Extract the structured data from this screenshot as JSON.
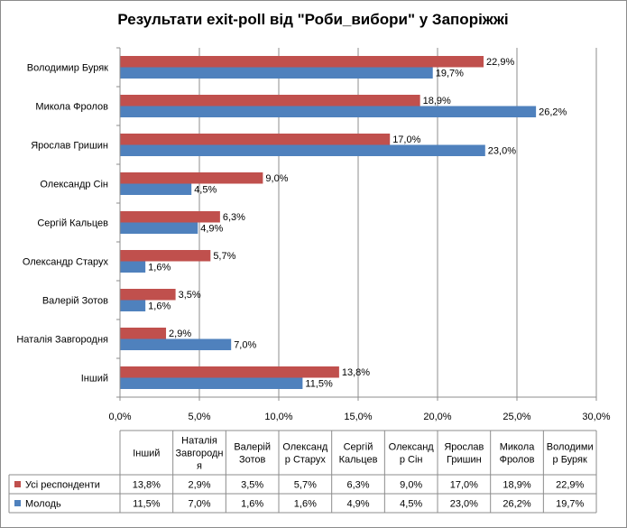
{
  "chart_data": {
    "type": "bar",
    "orientation": "horizontal",
    "title": "Результати exit-poll від \"Роби_вибори\" у Запоріжжі",
    "categories": [
      "Володимир Буряк",
      "Микола Фролов",
      "Ярослав Гришин",
      "Олександр Сін",
      "Сергій Кальцев",
      "Олександр Старух",
      "Валерій Зотов",
      "Наталія Завгородня",
      "Інший"
    ],
    "series": [
      {
        "name": "Усі респонденти",
        "color": "#c0504d",
        "values": [
          22.9,
          18.9,
          17.0,
          9.0,
          6.3,
          5.7,
          3.5,
          2.9,
          13.8
        ],
        "labels": [
          "22,9%",
          "18,9%",
          "17,0%",
          "9,0%",
          "6,3%",
          "5,7%",
          "3,5%",
          "2,9%",
          "13,8%"
        ]
      },
      {
        "name": "Молодь",
        "color": "#4f81bd",
        "values": [
          19.7,
          26.2,
          23.0,
          4.5,
          4.9,
          1.6,
          1.6,
          7.0,
          11.5
        ],
        "labels": [
          "19,7%",
          "26,2%",
          "23,0%",
          "4,5%",
          "4,9%",
          "1,6%",
          "1,6%",
          "7,0%",
          "11,5%"
        ]
      }
    ],
    "xlim": [
      0,
      30
    ],
    "x_ticks": [
      0,
      5,
      10,
      15,
      20,
      25,
      30
    ],
    "x_tick_labels": [
      "0,0%",
      "5,0%",
      "10,0%",
      "15,0%",
      "20,0%",
      "25,0%",
      "30,0%"
    ],
    "grid": true,
    "data_table": {
      "headers": [
        [
          "Інший"
        ],
        [
          "Наталія",
          "Завгородн",
          "я"
        ],
        [
          "Валерій",
          "Зотов"
        ],
        [
          "Олександ",
          "р Старух"
        ],
        [
          "Сергій",
          "Кальцев"
        ],
        [
          "Олександ",
          "р Сін"
        ],
        [
          "Ярослав",
          "Гришин"
        ],
        [
          "Микола",
          "Фролов"
        ],
        [
          "Володими",
          "р Буряк"
        ]
      ],
      "rows": [
        {
          "name": "Усі респонденти",
          "color": "#c0504d",
          "cells": [
            "13,8%",
            "2,9%",
            "3,5%",
            "5,7%",
            "6,3%",
            "9,0%",
            "17,0%",
            "18,9%",
            "22,9%"
          ]
        },
        {
          "name": "Молодь",
          "color": "#4f81bd",
          "cells": [
            "11,5%",
            "7,0%",
            "1,6%",
            "1,6%",
            "4,9%",
            "4,5%",
            "23,0%",
            "26,2%",
            "19,7%"
          ]
        }
      ]
    }
  }
}
